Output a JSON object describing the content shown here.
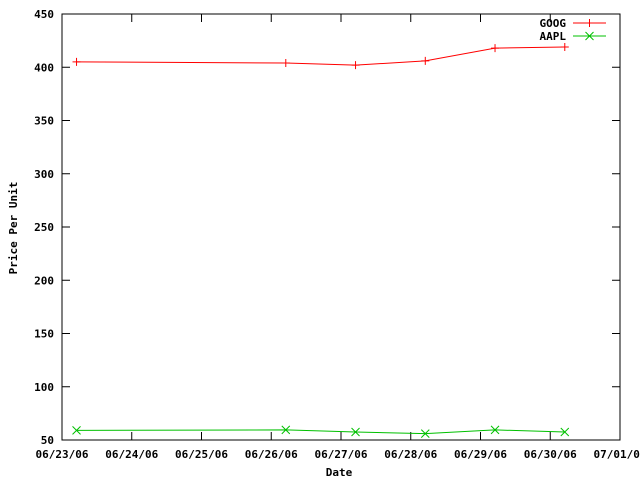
{
  "chart_data": {
    "type": "line",
    "title": "",
    "xlabel": "Date",
    "ylabel": "Price Per Unit",
    "ylim": [
      50,
      450
    ],
    "yticks": [
      50,
      100,
      150,
      200,
      250,
      300,
      350,
      400,
      450
    ],
    "xlim": [
      "06/23/06 00:00",
      "07/01/06 00:00"
    ],
    "xticks": [
      "06/23/06",
      "06/24/06",
      "06/25/06",
      "06/26/06",
      "06/27/06",
      "06/28/06",
      "06/29/06",
      "06/30/06",
      "07/01/06"
    ],
    "grid": false,
    "legend_position": "top-right",
    "series": [
      {
        "name": "GOOG",
        "color": "#ff0000",
        "marker": "plus",
        "points": [
          {
            "x": "06/23/06 05:00",
            "y": 405
          },
          {
            "x": "06/26/06 05:00",
            "y": 404
          },
          {
            "x": "06/27/06 05:00",
            "y": 402
          },
          {
            "x": "06/28/06 05:00",
            "y": 406
          },
          {
            "x": "06/29/06 05:00",
            "y": 418
          },
          {
            "x": "06/30/06 05:00",
            "y": 419
          }
        ]
      },
      {
        "name": "AAPL",
        "color": "#00c000",
        "marker": "cross",
        "points": [
          {
            "x": "06/23/06 05:00",
            "y": 59
          },
          {
            "x": "06/26/06 05:00",
            "y": 59.5
          },
          {
            "x": "06/27/06 05:00",
            "y": 57.5
          },
          {
            "x": "06/28/06 05:00",
            "y": 56
          },
          {
            "x": "06/29/06 05:00",
            "y": 59.5
          },
          {
            "x": "06/30/06 05:00",
            "y": 57.5
          }
        ]
      }
    ]
  }
}
